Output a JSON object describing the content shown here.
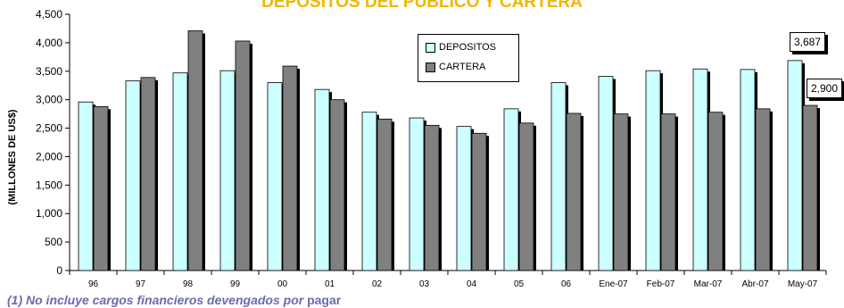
{
  "chart_data": {
    "type": "bar",
    "title": "DEPOSITOS DEL PUBLICO   Y CARTERA",
    "ylabel": "(MILLONES DE US$)",
    "categories": [
      "96",
      "97",
      "98",
      "99",
      "00",
      "01",
      "02",
      "03",
      "04",
      "05",
      "06",
      "Ene-07",
      "Feb-07",
      "Mar-07",
      "Abr-07",
      "May-07"
    ],
    "series": [
      {
        "name": "DEPOSITOS",
        "color": "#ccffff",
        "values": [
          2960,
          3330,
          3470,
          3510,
          3300,
          3180,
          2780,
          2680,
          2530,
          2840,
          3300,
          3410,
          3510,
          3540,
          3530,
          3687
        ]
      },
      {
        "name": "CARTERA",
        "color": "#808080",
        "values": [
          2880,
          3390,
          4210,
          4030,
          3590,
          3000,
          2660,
          2550,
          2410,
          2590,
          2760,
          2750,
          2750,
          2780,
          2840,
          2900
        ]
      }
    ],
    "ylim": [
      0,
      4500
    ],
    "yticks": [
      0,
      500,
      1000,
      1500,
      2000,
      2500,
      3000,
      3500,
      4000,
      4500
    ],
    "ytick_labels": [
      "0",
      "500",
      "1,000",
      "1,500",
      "2,000",
      "2,500",
      "3,000",
      "3,500",
      "4,000",
      "4,500"
    ],
    "callouts": [
      "3,687",
      "2,900"
    ],
    "legend_position": "top-center",
    "grid": false
  },
  "footnote": {
    "part1": "(1) No incluye cargos  financieros devengados por ",
    "part2": "pagar"
  }
}
